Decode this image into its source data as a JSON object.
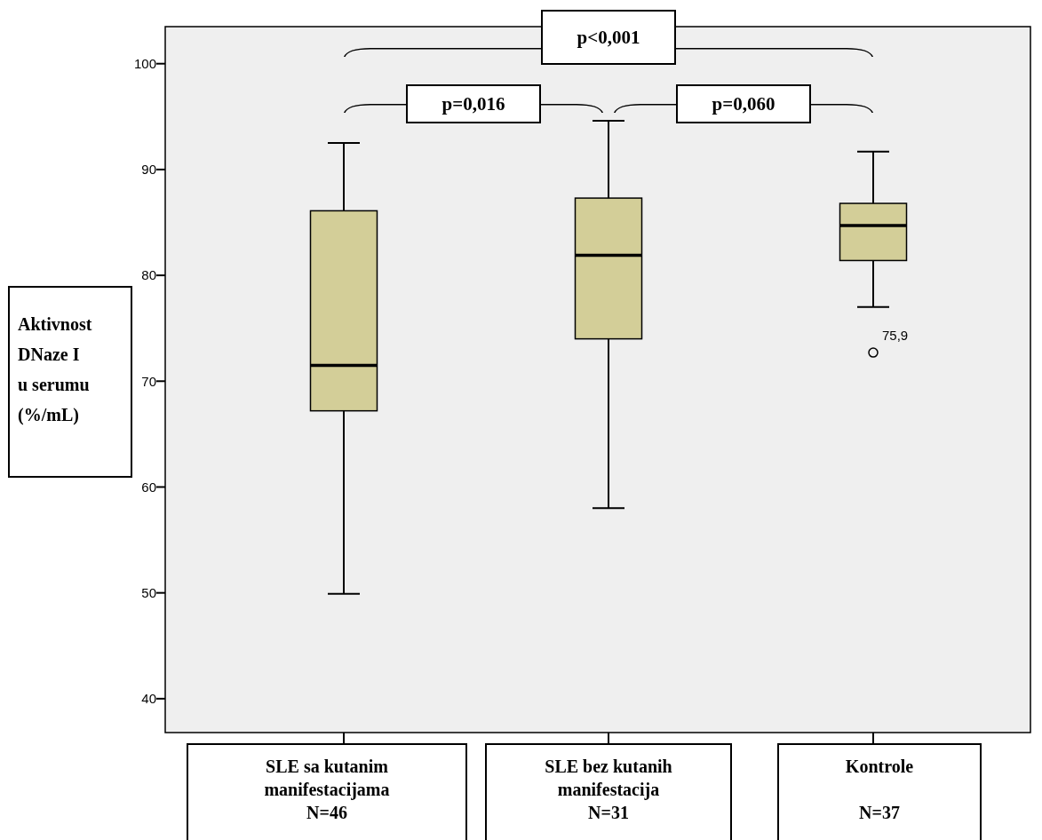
{
  "chart_data": {
    "type": "box",
    "ylabel": "Aktivnost\nDNaze I\nu serumu\n(%/mL)",
    "categories": [
      "SLE sa kutanim\nmanifestacijama\nN=46",
      "SLE bez kutanih\nmanifestacija\nN=31",
      "Kontrole\n\nN=37"
    ],
    "color": "#d3ce98",
    "boxes": [
      {
        "low": 49.9,
        "q1": 67.2,
        "median": 71.5,
        "q3": 86.1,
        "high": 92.5
      },
      {
        "low": 58.0,
        "q1": 74.0,
        "median": 81.9,
        "q3": 87.3,
        "high": 94.6
      },
      {
        "low": 77.0,
        "q1": 81.4,
        "median": 84.7,
        "q3": 86.8,
        "high": 91.7,
        "outliers": [
          72.7
        ]
      }
    ],
    "ylim": [
      36.8,
      103.5
    ],
    "yticks": [
      40,
      50,
      60,
      70,
      80,
      90,
      100
    ],
    "annotations": [
      "p<0,001",
      "p=0,016",
      "p=0,060",
      "75,9"
    ]
  }
}
